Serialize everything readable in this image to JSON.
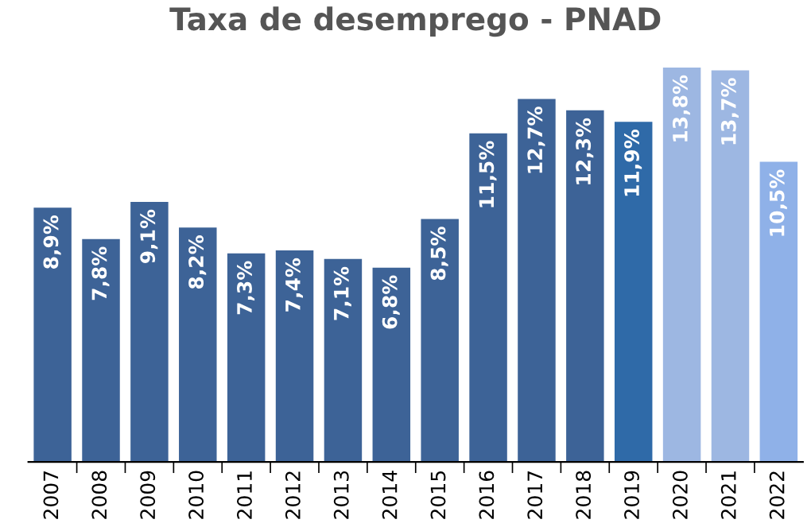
{
  "chart_data": {
    "type": "bar",
    "title": "Taxa de desemprego - PNAD",
    "categories": [
      "2007",
      "2008",
      "2009",
      "2010",
      "2011",
      "2012",
      "2013",
      "2014",
      "2015",
      "2016",
      "2017",
      "2018",
      "2019",
      "2020",
      "2021",
      "2022"
    ],
    "values": [
      8.9,
      7.8,
      9.1,
      8.2,
      7.3,
      7.4,
      7.1,
      6.8,
      8.5,
      11.5,
      12.7,
      12.3,
      11.9,
      13.8,
      13.7,
      10.5
    ],
    "value_labels": [
      "8,9%",
      "7,8%",
      "9,1%",
      "8,2%",
      "7,3%",
      "7,4%",
      "7,1%",
      "6,8%",
      "8,5%",
      "11,5%",
      "12,7%",
      "12,3%",
      "11,9%",
      "13,8%",
      "13,7%",
      "10,5%"
    ],
    "colors": [
      "#3d6397",
      "#3d6397",
      "#3d6397",
      "#3d6397",
      "#3d6397",
      "#3d6397",
      "#3d6397",
      "#3d6397",
      "#3d6397",
      "#3d6397",
      "#3d6397",
      "#3d6397",
      "#2f6aa8",
      "#9db7e2",
      "#9db7e2",
      "#8fb1e8"
    ],
    "tick_labels": "x",
    "grid": false,
    "legend": false
  }
}
